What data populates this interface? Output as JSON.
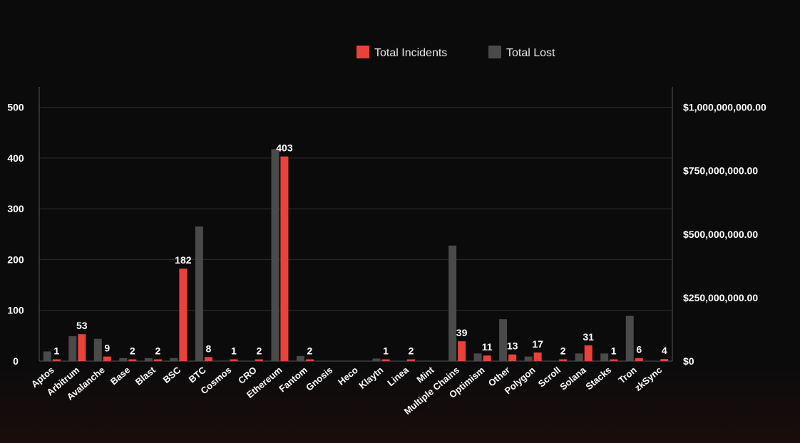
{
  "chart_data": {
    "type": "bar",
    "categories": [
      "Aptos",
      "Arbitrum",
      "Avalanche",
      "Base",
      "Blast",
      "BSC",
      "BTC",
      "Cosmos",
      "CRO",
      "Ethereum",
      "Fantom",
      "Gnosis",
      "Heco",
      "Klaytn",
      "Linea",
      "Mint",
      "Multiple Chains",
      "Optimism",
      "Other",
      "Polygon",
      "Scroll",
      "Solana",
      "Stacks",
      "Tron",
      "zkSync"
    ],
    "series": [
      {
        "name": "Total Incidents",
        "axis": "left",
        "color": "#e8423b",
        "values": [
          1,
          53,
          9,
          2,
          2,
          182,
          8,
          1,
          2,
          403,
          2,
          0,
          0,
          1,
          2,
          0,
          39,
          11,
          13,
          17,
          2,
          31,
          1,
          6,
          4
        ],
        "labels": [
          "1",
          "53",
          "9",
          "2",
          "2",
          "182",
          "8",
          "1",
          "2",
          "403",
          "2",
          "",
          "",
          "1",
          "2",
          "",
          "39",
          "11",
          "13",
          "17",
          "2",
          "31",
          "1",
          "6",
          "4"
        ]
      },
      {
        "name": "Total Lost",
        "axis": "right",
        "color": "#4a4a4a",
        "values": [
          38000000,
          98000000,
          88000000,
          12000000,
          12000000,
          12000000,
          530000000,
          2000000,
          1000000,
          835000000,
          20000000,
          0,
          0,
          10000000,
          1000000,
          0,
          455000000,
          30000000,
          165000000,
          18000000,
          1000000,
          30000000,
          30000000,
          178000000,
          1000000
        ]
      }
    ],
    "y_left": {
      "ylim": [
        0,
        540
      ],
      "ticks": [
        "0",
        "100",
        "200",
        "300",
        "400",
        "500"
      ]
    },
    "y_right": {
      "ylim": [
        0,
        1080000000
      ],
      "ticks": [
        "$0",
        "$250,000,000.00",
        "$500,000,000.00",
        "$750,000,000.00",
        "$1,000,000,000.00"
      ]
    },
    "grid": true,
    "legend_position": "top-center"
  }
}
